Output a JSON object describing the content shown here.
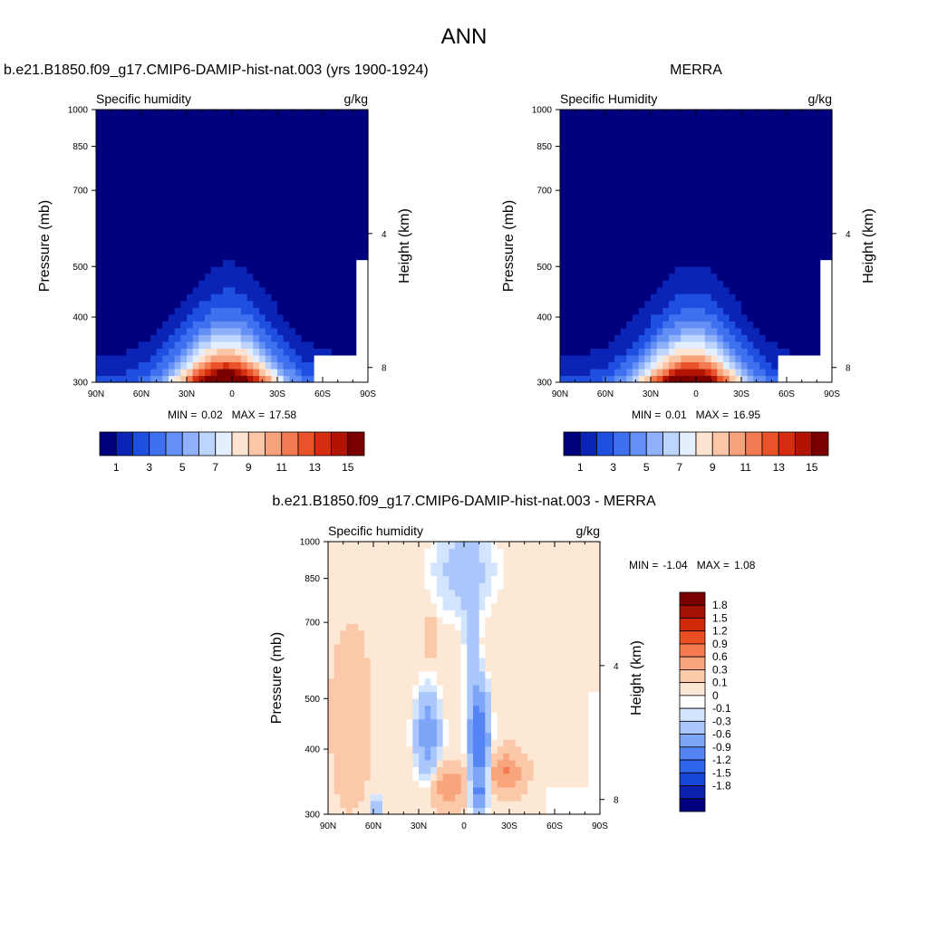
{
  "page_title": "ANN",
  "colors": {
    "seq_palette": [
      "#00007f",
      "#0b24b5",
      "#1f4fe0",
      "#3f70f0",
      "#6490f5",
      "#8fb1fa",
      "#bdd4fd",
      "#e3eefe",
      "#fde4d0",
      "#fbc5a7",
      "#f8a27b",
      "#f27a50",
      "#ea522a",
      "#d52d0f",
      "#b21404",
      "#7a0000"
    ],
    "diff_palette": [
      "#00007f",
      "#0a22ae",
      "#1546d8",
      "#2f66ee",
      "#5585f4",
      "#7ea6f8",
      "#aac7fb",
      "#d2e4fe",
      "#ffffff",
      "#fde8d6",
      "#fbc9a9",
      "#f8a57d",
      "#f47b4f",
      "#ea4f22",
      "#cf2a08",
      "#a31004",
      "#7a0000"
    ]
  },
  "chart_data": [
    {
      "type": "heatmap",
      "title": "b.e21.B1850.f09_g17.CMIP6-DAMIP-hist-nat.003 (yrs 1900-1924)",
      "variable_label": "Specific humidity",
      "units": "g/kg",
      "ylabel": "Pressure (mb)",
      "right_label": "Height (km)",
      "x_ticks": [
        "90N",
        "60N",
        "30N",
        "0",
        "30S",
        "60S",
        "90S"
      ],
      "y_ticks": [
        "300",
        "400",
        "500",
        "700",
        "850",
        "1000"
      ],
      "y_tick_values": [
        300,
        400,
        500,
        700,
        850,
        1000
      ],
      "height_ticks": [
        "8",
        "4"
      ],
      "height_tick_values": [
        8,
        4
      ],
      "ylim": [
        1000,
        300
      ],
      "xlim": [
        90,
        -90
      ],
      "min_label": "MIN =",
      "min_value": "0.02",
      "max_label": "MAX =",
      "max_value": "17.58",
      "peak": 17.58,
      "colorbar_labels": [
        "1",
        "3",
        "5",
        "7",
        "9",
        "11",
        "13",
        "15"
      ],
      "colorbar_levels": [
        1,
        2,
        3,
        4,
        5,
        6,
        7,
        8,
        9,
        10,
        11,
        12,
        13,
        14,
        15
      ]
    },
    {
      "type": "heatmap",
      "title": "MERRA",
      "variable_label": "Specific Humidity",
      "units": "g/kg",
      "ylabel": "Pressure (mb)",
      "right_label": "Height (km)",
      "x_ticks": [
        "90N",
        "60N",
        "30N",
        "0",
        "30S",
        "60S",
        "90S"
      ],
      "y_ticks": [
        "300",
        "400",
        "500",
        "700",
        "850",
        "1000"
      ],
      "y_tick_values": [
        300,
        400,
        500,
        700,
        850,
        1000
      ],
      "height_ticks": [
        "8",
        "4"
      ],
      "height_tick_values": [
        8,
        4
      ],
      "ylim": [
        1000,
        300
      ],
      "xlim": [
        90,
        -90
      ],
      "min_label": "MIN =",
      "min_value": "0.01",
      "max_label": "MAX =",
      "max_value": "16.95",
      "peak": 16.95,
      "colorbar_labels": [
        "1",
        "3",
        "5",
        "7",
        "9",
        "11",
        "13",
        "15"
      ],
      "colorbar_levels": [
        1,
        2,
        3,
        4,
        5,
        6,
        7,
        8,
        9,
        10,
        11,
        12,
        13,
        14,
        15
      ]
    },
    {
      "type": "heatmap",
      "title": "b.e21.B1850.f09_g17.CMIP6-DAMIP-hist-nat.003 - MERRA",
      "variable_label": "Specific humidity",
      "units": "g/kg",
      "ylabel": "Pressure (mb)",
      "right_label": "Height (km)",
      "x_ticks": [
        "90N",
        "60N",
        "30N",
        "0",
        "30S",
        "60S",
        "90S"
      ],
      "y_ticks": [
        "300",
        "400",
        "500",
        "700",
        "850",
        "1000"
      ],
      "y_tick_values": [
        300,
        400,
        500,
        700,
        850,
        1000
      ],
      "height_ticks": [
        "8",
        "4"
      ],
      "height_tick_values": [
        8,
        4
      ],
      "ylim": [
        1000,
        300
      ],
      "xlim": [
        90,
        -90
      ],
      "min_label": "MIN =",
      "min_value": "-1.04",
      "max_label": "MAX =",
      "max_value": "1.08",
      "colorbar_labels": [
        "1.8",
        "1.5",
        "1.2",
        "0.9",
        "0.6",
        "0.3",
        "0.1",
        "0",
        "-0.1",
        "-0.3",
        "-0.6",
        "-0.9",
        "-1.2",
        "-1.5",
        "-1.8"
      ],
      "colorbar_levels": [
        -1.8,
        -1.5,
        -1.2,
        -0.9,
        -0.6,
        -0.3,
        -0.1,
        0,
        0.1,
        0.3,
        0.6,
        0.9,
        1.2,
        1.5,
        1.8
      ]
    }
  ]
}
